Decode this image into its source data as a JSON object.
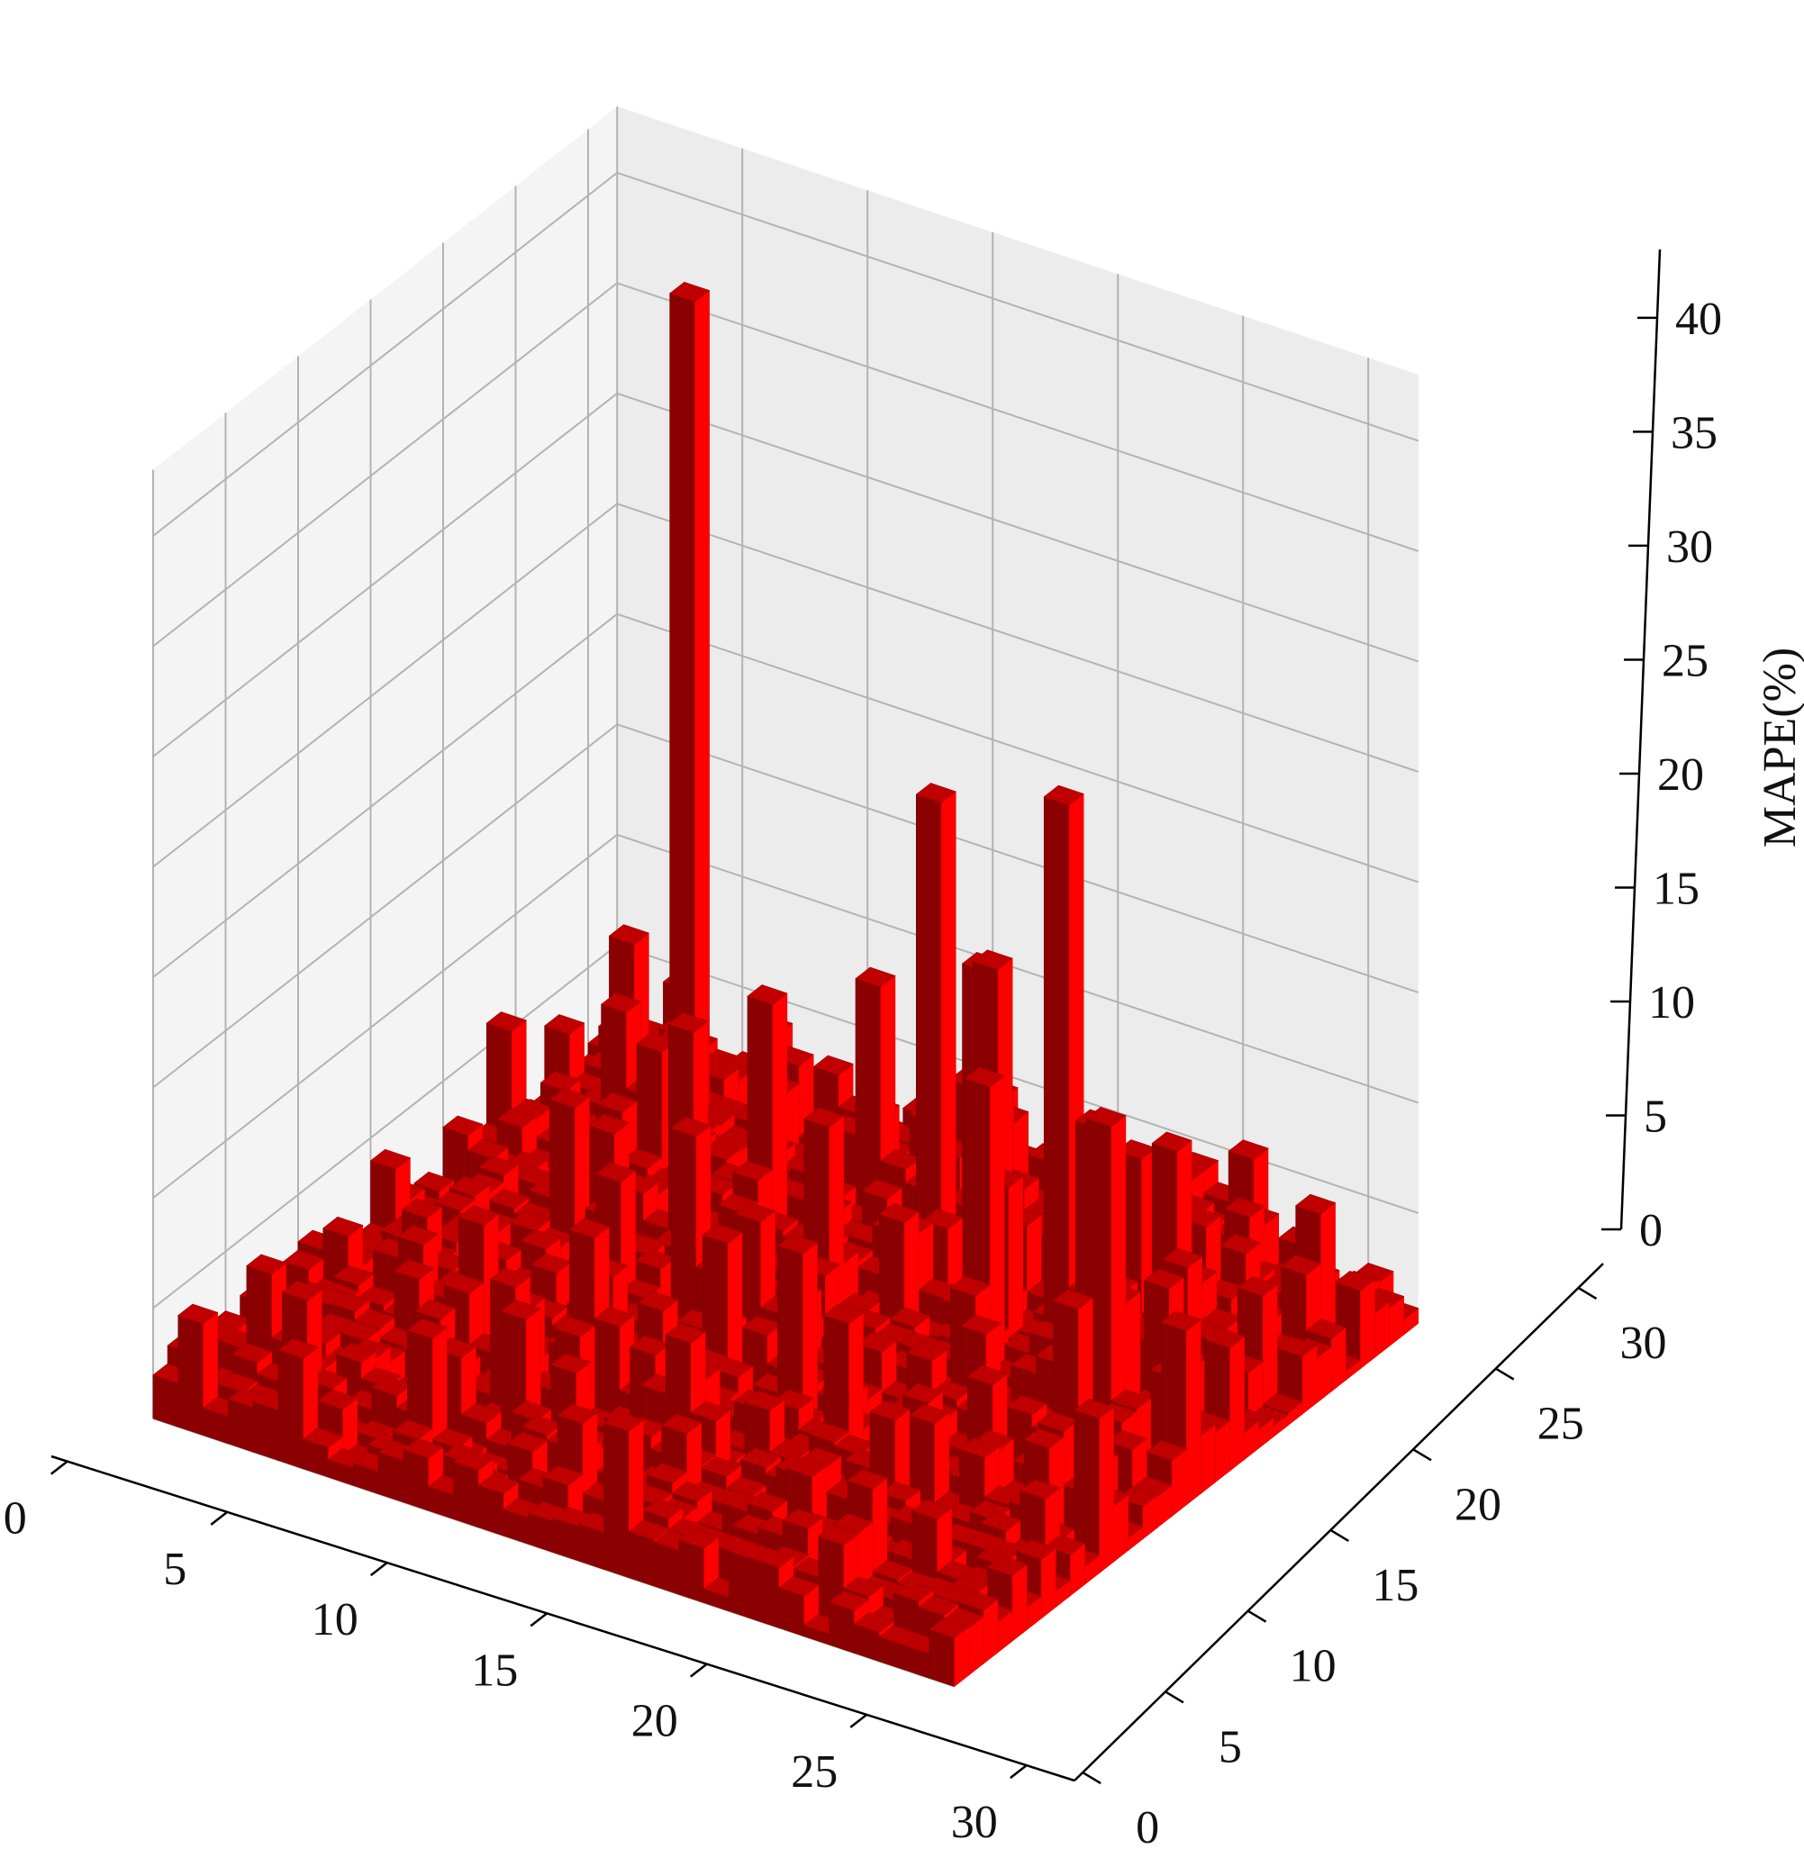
{
  "chart_data": {
    "type": "bar3d",
    "title": "",
    "xlabel": "",
    "ylabel": "",
    "zlabel": "MAPE(%)",
    "grid": true,
    "x_ticks": [
      0,
      5,
      10,
      15,
      20,
      25,
      30
    ],
    "y_ticks": [
      0,
      5,
      10,
      15,
      20,
      25,
      30
    ],
    "z_ticks": [
      0,
      5,
      10,
      15,
      20,
      25,
      30,
      35,
      40
    ],
    "xlim": [
      0,
      32
    ],
    "ylim": [
      0,
      32
    ],
    "zlim": [
      0,
      43
    ],
    "grid_size": 32,
    "bar_color": "#ff0000",
    "peaks": [
      {
        "x": 5,
        "y": 27,
        "z": 39
      },
      {
        "x": 16,
        "y": 25,
        "z": 21.5
      },
      {
        "x": 24,
        "y": 20,
        "z": 27
      },
      {
        "x": 20,
        "y": 22,
        "z": 17
      },
      {
        "x": 19,
        "y": 23,
        "z": 16
      },
      {
        "x": 27,
        "y": 17,
        "z": 15
      },
      {
        "x": 28,
        "y": 16,
        "z": 16
      },
      {
        "x": 22,
        "y": 18,
        "z": 14.5
      },
      {
        "x": 11,
        "y": 22,
        "z": 12
      },
      {
        "x": 13,
        "y": 26,
        "z": 11.5
      },
      {
        "x": 9,
        "y": 20,
        "z": 11
      },
      {
        "x": 3,
        "y": 30,
        "z": 5.5
      },
      {
        "x": 31,
        "y": 10,
        "z": 7
      },
      {
        "x": 6,
        "y": 17,
        "z": 8
      },
      {
        "x": 15,
        "y": 19,
        "z": 9.5
      },
      {
        "x": 26,
        "y": 24,
        "z": 10
      },
      {
        "x": 18,
        "y": 12,
        "z": 8.5
      },
      {
        "x": 12,
        "y": 8,
        "z": 9
      }
    ]
  }
}
